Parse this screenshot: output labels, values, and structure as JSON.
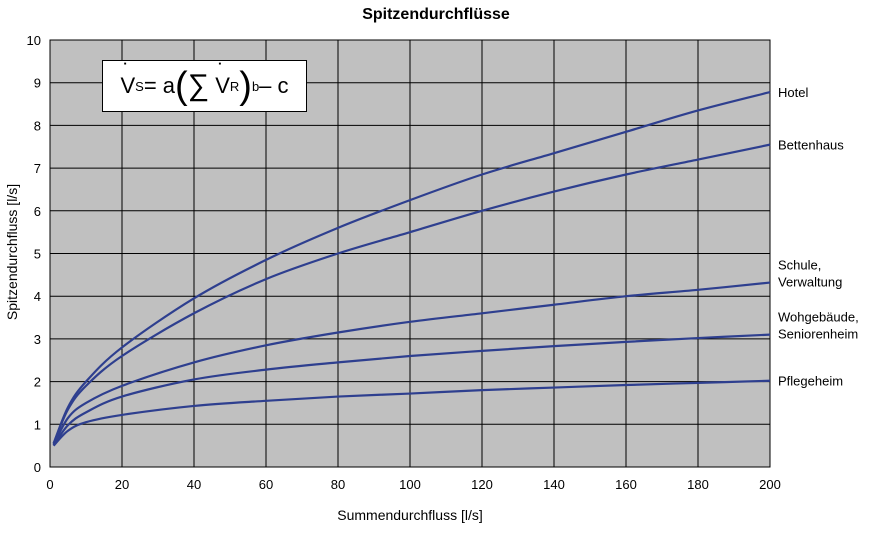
{
  "chart_data": {
    "type": "line",
    "title": "Spitzendurchflüsse",
    "xlabel": "Summendurchfluss [l/s]",
    "ylabel": "Spitzendurchfluss [l/s]",
    "xlim": [
      0,
      200
    ],
    "ylim": [
      0,
      10
    ],
    "xticks": [
      0,
      20,
      40,
      60,
      80,
      100,
      120,
      140,
      160,
      180,
      200
    ],
    "yticks": [
      0,
      1,
      2,
      3,
      4,
      5,
      6,
      7,
      8,
      9,
      10
    ],
    "grid": true,
    "plot_background": "#c0c0c0",
    "line_color": "#2e3f8f",
    "formula": {
      "v": "V",
      "sub_s": "S",
      "eq": " = a",
      "paren_l": "(",
      "sum": "∑",
      "sub_r": "R",
      "paren_r": ")",
      "exp": "b",
      "minus_c": " – c"
    },
    "series": [
      {
        "name": "Hotel",
        "label_lines": [
          "Hotel"
        ],
        "x": [
          1,
          5,
          10,
          20,
          40,
          60,
          80,
          100,
          120,
          140,
          160,
          180,
          200
        ],
        "y": [
          0.55,
          1.4,
          2.0,
          2.8,
          3.95,
          4.85,
          5.6,
          6.25,
          6.85,
          7.35,
          7.85,
          8.35,
          8.78
        ]
      },
      {
        "name": "Bettenhaus",
        "label_lines": [
          "Bettenhaus"
        ],
        "x": [
          1,
          5,
          10,
          20,
          40,
          60,
          80,
          100,
          120,
          140,
          160,
          180,
          200
        ],
        "y": [
          0.55,
          1.35,
          1.9,
          2.6,
          3.6,
          4.4,
          5.0,
          5.5,
          6.0,
          6.45,
          6.85,
          7.2,
          7.55
        ]
      },
      {
        "name": "Schule, Verwaltung",
        "label_lines": [
          "Schule,",
          "Verwaltung"
        ],
        "x": [
          1,
          5,
          10,
          20,
          40,
          60,
          80,
          100,
          120,
          140,
          160,
          180,
          200
        ],
        "y": [
          0.52,
          1.15,
          1.5,
          1.9,
          2.45,
          2.85,
          3.15,
          3.4,
          3.6,
          3.8,
          4.0,
          4.15,
          4.32
        ]
      },
      {
        "name": "Wohgebäude, Seniorenheim",
        "label_lines": [
          "Wohgebäude,",
          "Seniorenheim"
        ],
        "x": [
          1,
          5,
          10,
          20,
          40,
          60,
          80,
          100,
          120,
          140,
          160,
          180,
          200
        ],
        "y": [
          0.5,
          0.98,
          1.28,
          1.65,
          2.05,
          2.28,
          2.45,
          2.6,
          2.72,
          2.83,
          2.93,
          3.02,
          3.1
        ]
      },
      {
        "name": "Pflegeheim",
        "label_lines": [
          "Pflegeheim"
        ],
        "x": [
          1,
          5,
          10,
          20,
          40,
          60,
          80,
          100,
          120,
          140,
          160,
          180,
          200
        ],
        "y": [
          0.5,
          0.85,
          1.05,
          1.22,
          1.43,
          1.55,
          1.65,
          1.72,
          1.8,
          1.86,
          1.92,
          1.97,
          2.02
        ]
      }
    ]
  }
}
